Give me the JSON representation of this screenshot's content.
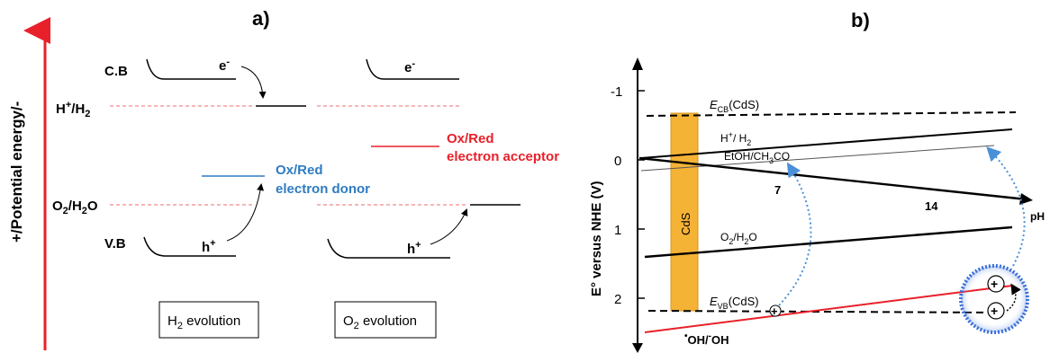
{
  "panel_a": {
    "label": "a)",
    "y_axis_label": "+/Potential energy/-",
    "cb_label": "C.B",
    "vb_label": "V.B",
    "h_level_label": "H",
    "h_level_sup": "+",
    "h_level_rest": "/H",
    "h_level_sub": "2",
    "o_level_label": "O",
    "o_level_sub": "2",
    "o_level_rest": "/H",
    "o_level_sub2": "2",
    "o_level_end": "O",
    "electron": "e",
    "electron_sup": "-",
    "hole": "h",
    "hole_sup": "+",
    "donor_line1": "Ox/Red",
    "donor_line2": "electron donor",
    "acceptor_line1": "Ox/Red",
    "acceptor_line2": "electron acceptor",
    "box_h2_main": "H",
    "box_h2_sub": "2",
    "box_h2_rest": " evolution",
    "box_o2_main": "O",
    "box_o2_sub": "2",
    "box_o2_rest": " evolution",
    "colors": {
      "axis": "#e8202a",
      "dashed": "#f08a8a",
      "donor": "#2e7cc2",
      "acceptor": "#e8202a"
    }
  },
  "panel_b": {
    "label": "b)",
    "y_axis_label": "E° versus NHE (V)",
    "y_ticks": [
      "-1",
      "0",
      "1",
      "2"
    ],
    "x_axis_label": "pH",
    "x_ticks": [
      "7",
      "14"
    ],
    "cds_label": "CdS",
    "ecb_label": "E",
    "ecb_sub": "CB",
    "ecb_rest": "(CdS)",
    "evb_label": "E",
    "evb_sub": "VB",
    "evb_rest": "(CdS)",
    "h2_line_label": "H",
    "h2_line_sup": "+",
    "h2_line_rest": "/ H",
    "h2_line_sub": "2",
    "etoh_label": "EtOH/CH",
    "etoh_sub": "3",
    "etoh_rest": "CO",
    "o2_label": "O",
    "o2_sub": "2",
    "o2_rest": "/H",
    "o2_sub2": "2",
    "o2_end": "O",
    "oh_label": "OH/",
    "oh_rest": "OH",
    "oh_sup": "-",
    "oh_dot": "•",
    "plus": "+",
    "colors": {
      "cds_bar": "#f5b335",
      "cds_bar_edge": "#d9961c",
      "oh_line": "#e8202a",
      "arrow": "#4a90d9",
      "circle": "#3a6fd8"
    }
  }
}
